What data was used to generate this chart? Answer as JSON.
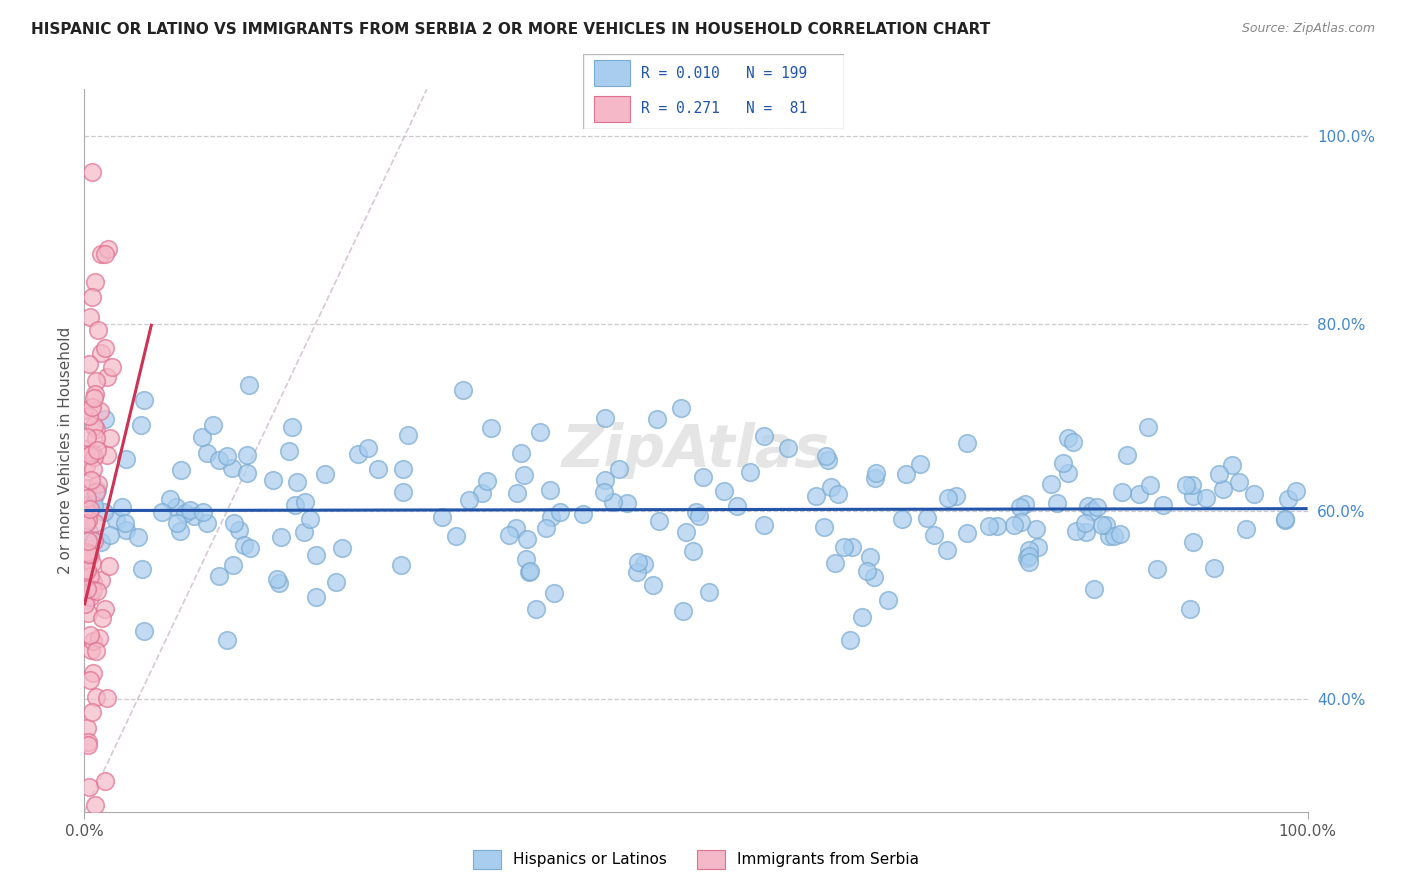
{
  "title": "HISPANIC OR LATINO VS IMMIGRANTS FROM SERBIA 2 OR MORE VEHICLES IN HOUSEHOLD CORRELATION CHART",
  "source": "Source: ZipAtlas.com",
  "ylabel": "2 or more Vehicles in Household",
  "xlim": [
    0,
    1
  ],
  "ylim": [
    0.28,
    1.05
  ],
  "blue_color": "#A8CDEF",
  "blue_edge_color": "#7AAAD0",
  "pink_color": "#F4B8C8",
  "pink_edge_color": "#E07090",
  "blue_line_color": "#2255AA",
  "pink_line_color": "#CC3355",
  "diag_line_color": "#CCBBCC",
  "R_blue": 0.01,
  "N_blue": 199,
  "R_pink": 0.271,
  "N_pink": 81,
  "legend_label_blue": "Hispanics or Latinos",
  "legend_label_pink": "Immigrants from Serbia",
  "background_color": "#FFFFFF",
  "grid_color": "#CCCCCC",
  "title_color": "#222222",
  "legend_text_color": "#2255AA",
  "watermark": "ZipAtlas",
  "blue_seed": 42,
  "pink_seed": 7
}
